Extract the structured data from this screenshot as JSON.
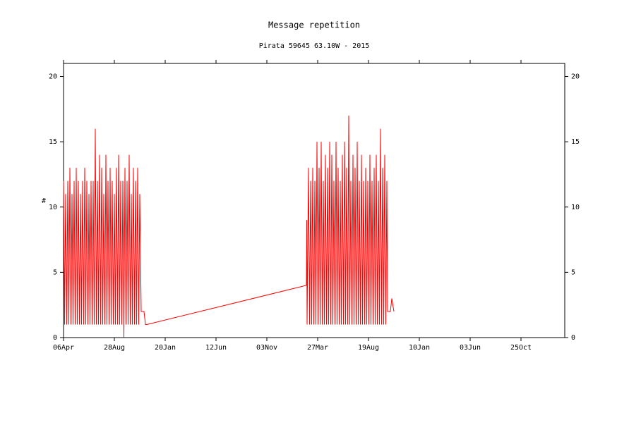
{
  "chart_data": {
    "type": "line",
    "title": "Message repetition",
    "subtitle": "Pirata 59645 63.10W - 2015",
    "ylabel": "#",
    "color": "#ff0000",
    "x": [
      0,
      3,
      6,
      9,
      12,
      15,
      18,
      21,
      24,
      27,
      30,
      33,
      36,
      39,
      42,
      45,
      48,
      51,
      54,
      57,
      60,
      63,
      66,
      69,
      72,
      75,
      78,
      81,
      84,
      87,
      90,
      93,
      96,
      99,
      102,
      105,
      108,
      111,
      114,
      117,
      120,
      123,
      126,
      129,
      132,
      135,
      138,
      141,
      144,
      147,
      150,
      153,
      156,
      159,
      162,
      165,
      168,
      171,
      174,
      177,
      180,
      183,
      186,
      189,
      192,
      195,
      198,
      201,
      204,
      207,
      210,
      213,
      216,
      220,
      228,
      232,
      236,
      688,
      689,
      690,
      694,
      697,
      700,
      703,
      706,
      709,
      712,
      715,
      718,
      721,
      724,
      727,
      730,
      733,
      736,
      739,
      742,
      745,
      748,
      751,
      754,
      757,
      760,
      763,
      766,
      769,
      772,
      775,
      778,
      781,
      784,
      787,
      790,
      793,
      796,
      799,
      802,
      805,
      808,
      811,
      814,
      817,
      820,
      823,
      826,
      829,
      832,
      835,
      838,
      841,
      844,
      847,
      850,
      853,
      856,
      859,
      862,
      865,
      868,
      871,
      874,
      877,
      880,
      883,
      886,
      889,
      892,
      895,
      898,
      901,
      904,
      907,
      910,
      913,
      916,
      918,
      926,
      930,
      936
    ],
    "values": [
      12,
      1,
      11,
      1,
      12,
      1,
      13,
      1,
      11,
      1,
      12,
      1,
      13,
      1,
      12,
      1,
      11,
      1,
      12,
      1,
      13,
      1,
      12,
      1,
      11,
      1,
      12,
      1,
      12,
      1,
      16,
      1,
      12,
      1,
      14,
      1,
      13,
      1,
      11,
      1,
      14,
      1,
      12,
      1,
      13,
      1,
      12,
      1,
      11,
      1,
      13,
      1,
      14,
      1,
      12,
      1,
      12,
      0,
      13,
      1,
      12,
      1,
      14,
      1,
      11,
      1,
      13,
      1,
      12,
      1,
      13,
      1,
      11,
      2,
      2,
      1,
      1,
      4,
      9,
      1,
      13,
      1,
      12,
      1,
      13,
      1,
      12,
      1,
      15,
      1,
      13,
      1,
      15,
      1,
      12,
      1,
      14,
      1,
      13,
      1,
      15,
      1,
      14,
      1,
      12,
      1,
      15,
      1,
      13,
      1,
      12,
      1,
      14,
      1,
      15,
      1,
      13,
      1,
      17,
      1,
      12,
      1,
      14,
      1,
      13,
      1,
      15,
      1,
      12,
      1,
      14,
      1,
      12,
      1,
      13,
      1,
      12,
      1,
      14,
      1,
      12,
      1,
      13,
      1,
      14,
      1,
      12,
      1,
      16,
      1,
      13,
      1,
      14,
      1,
      12,
      2,
      2,
      3,
      2
    ],
    "xlim": [
      0,
      1420
    ],
    "xticks": [
      {
        "value": 0,
        "label": "06Apr"
      },
      {
        "value": 144,
        "label": "28Aug"
      },
      {
        "value": 288,
        "label": "20Jan"
      },
      {
        "value": 432,
        "label": "12Jun"
      },
      {
        "value": 576,
        "label": "03Nov"
      },
      {
        "value": 720,
        "label": "27Mar"
      },
      {
        "value": 864,
        "label": "19Aug"
      },
      {
        "value": 1008,
        "label": "10Jan"
      },
      {
        "value": 1152,
        "label": "03Jun"
      },
      {
        "value": 1296,
        "label": "25Oct"
      }
    ],
    "ylim": [
      0,
      21
    ],
    "yticks": [
      0,
      5,
      10,
      15,
      20
    ]
  }
}
